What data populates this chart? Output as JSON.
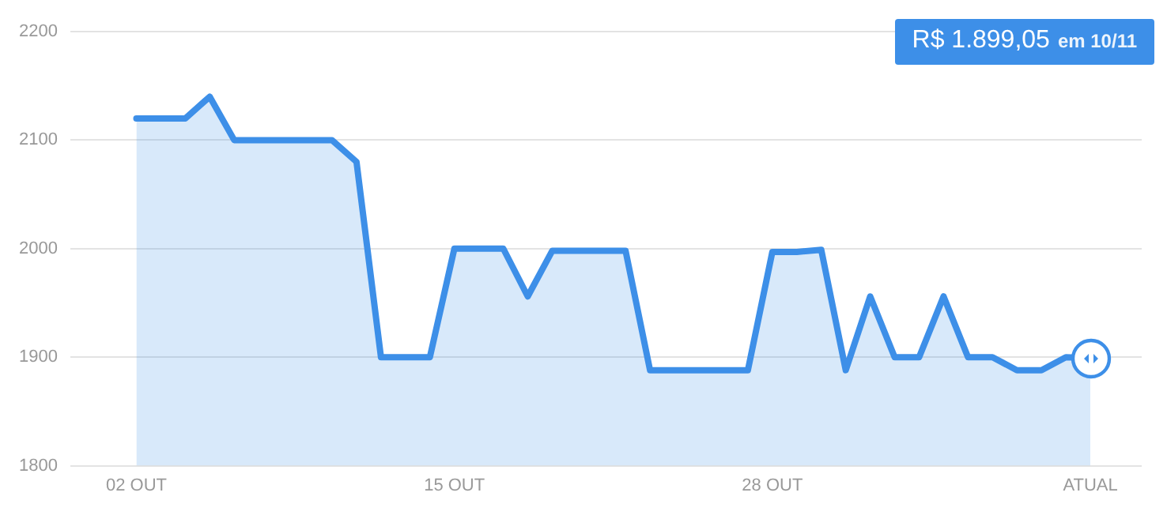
{
  "chart_data": {
    "type": "area",
    "categories": [
      "02 OUT",
      null,
      null,
      null,
      null,
      null,
      null,
      null,
      null,
      null,
      null,
      null,
      null,
      "15 OUT",
      null,
      null,
      null,
      null,
      null,
      null,
      null,
      null,
      null,
      null,
      null,
      null,
      "28 OUT",
      null,
      null,
      null,
      null,
      null,
      null,
      null,
      null,
      null,
      null,
      null,
      null,
      "ATUAL"
    ],
    "series": [
      {
        "color": "#3d8fe8",
        "values": [
          2120,
          2120,
          2120,
          2140,
          2100,
          2100,
          2100,
          2100,
          2100,
          2080,
          1900,
          1900,
          1900,
          2000,
          2000,
          2000,
          1956,
          1998,
          1998,
          1998,
          1998,
          1888,
          1888,
          1888,
          1888,
          1888,
          1997,
          1997,
          1999,
          1888,
          1956,
          1900,
          1900,
          1956,
          1900,
          1900,
          1888,
          1888,
          1900,
          1899
        ]
      }
    ],
    "ylim": [
      1800,
      2200
    ],
    "yticks": [
      1800,
      1900,
      2000,
      2100,
      2200
    ],
    "grid": "y",
    "legend": false,
    "marker": "none",
    "line_style": "solid",
    "annotations": [
      "R$ 1.899,05",
      "em 10/11"
    ]
  }
}
